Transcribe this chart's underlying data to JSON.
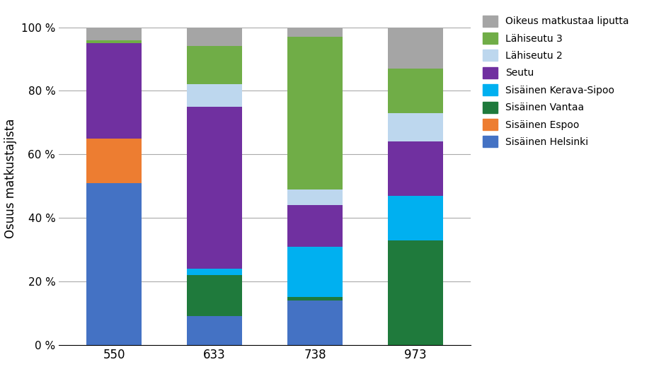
{
  "categories": [
    "550",
    "633",
    "738",
    "973"
  ],
  "series": [
    {
      "label": "Sisäinen Helsinki",
      "color": "#4472C4",
      "values": [
        51,
        9,
        14,
        0
      ]
    },
    {
      "label": "Sisäinen Espoo",
      "color": "#ED7D31",
      "values": [
        14,
        0,
        0,
        0
      ]
    },
    {
      "label": "Sisäinen Vantaa",
      "color": "#1F7A3C",
      "values": [
        0,
        13,
        1,
        33
      ]
    },
    {
      "label": "Sisäinen Kerava-Sipoo",
      "color": "#00B0F0",
      "values": [
        0,
        2,
        16,
        14
      ]
    },
    {
      "label": "Seutu",
      "color": "#7030A0",
      "values": [
        30,
        51,
        13,
        17
      ]
    },
    {
      "label": "Lähiseutu 2",
      "color": "#BDD7EE",
      "values": [
        0,
        7,
        5,
        9
      ]
    },
    {
      "label": "Lähiseutu 3",
      "color": "#70AD47",
      "values": [
        1,
        12,
        48,
        14
      ]
    },
    {
      "label": "Oikeus matkustaa liputta",
      "color": "#A5A5A5",
      "values": [
        4,
        6,
        3,
        13
      ]
    }
  ],
  "ylabel": "Osuus matkustajista",
  "yticks": [
    0,
    20,
    40,
    60,
    80,
    100
  ],
  "ytick_labels": [
    "0 %",
    "20 %",
    "40 %",
    "60 %",
    "80 %",
    "100 %"
  ],
  "background_color": "#FFFFFF",
  "bar_width": 0.55,
  "figsize": [
    9.24,
    5.36
  ],
  "dpi": 100
}
